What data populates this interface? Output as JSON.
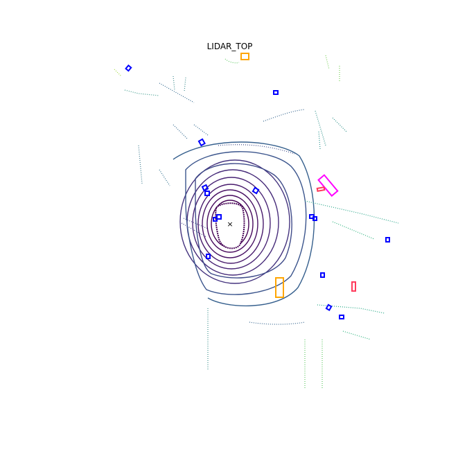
{
  "title": "LIDAR_TOP",
  "colors": {
    "near": "#440154",
    "mid": "#31688e",
    "far": "#35b779",
    "farthest": "#90d743",
    "car": "#0000ff",
    "truck": "#ffa500",
    "trailer": "#ff00ff",
    "barrier": "#ff3b5c",
    "ego": "#000000"
  },
  "boxes": [
    {
      "label": "car"
    },
    {
      "label": "car"
    },
    {
      "label": "car"
    },
    {
      "label": "car"
    },
    {
      "label": "car"
    },
    {
      "label": "car"
    },
    {
      "label": "car"
    },
    {
      "label": "car"
    },
    {
      "label": "car"
    },
    {
      "label": "car"
    },
    {
      "label": "car"
    },
    {
      "label": "car"
    },
    {
      "label": "car"
    },
    {
      "label": "car"
    },
    {
      "label": "car"
    },
    {
      "label": "truck"
    },
    {
      "label": "truck"
    },
    {
      "label": "trailer"
    },
    {
      "label": "barrier"
    },
    {
      "label": "barrier"
    }
  ],
  "ego": {
    "marker": "×"
  }
}
